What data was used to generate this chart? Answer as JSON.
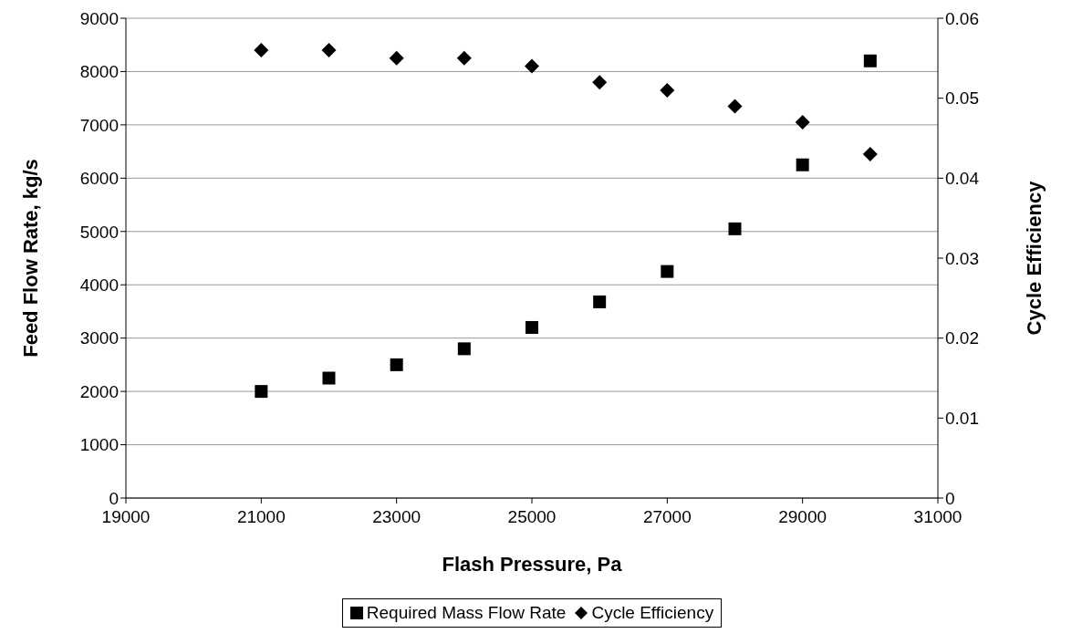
{
  "chart_data": {
    "type": "scatter",
    "xlabel": "Flash Pressure, Pa",
    "ylabel": "Feed Flow Rate, kg/s",
    "y2label": "Cycle Efficiency",
    "x": [
      21000,
      22000,
      23000,
      24000,
      25000,
      26000,
      27000,
      28000,
      29000,
      30000
    ],
    "series": [
      {
        "name": "Required Mass Flow Rate",
        "color": "#000000",
        "marker": "square",
        "values": [
          2000,
          2250,
          2500,
          2800,
          3200,
          3680,
          4250,
          5050,
          6250,
          8200
        ]
      },
      {
        "name": "Cycle Efficiency",
        "color": "#000000",
        "marker": "diamond",
        "axis": "y2",
        "values": [
          0.056,
          0.056,
          0.055,
          0.055,
          0.054,
          0.052,
          0.051,
          0.049,
          0.047,
          0.043
        ]
      }
    ],
    "xlim": [
      19000,
      31000
    ],
    "xticks": [
      19000,
      21000,
      23000,
      25000,
      27000,
      29000,
      31000
    ],
    "ylim": [
      0,
      9000
    ],
    "yticks": [
      0,
      1000,
      2000,
      3000,
      4000,
      5000,
      6000,
      7000,
      8000,
      9000
    ],
    "y2lim": [
      0,
      0.06
    ],
    "y2ticks": [
      0,
      0.01,
      0.02,
      0.03,
      0.04,
      0.05,
      0.06
    ],
    "grid": "y",
    "legend": "bottom"
  }
}
